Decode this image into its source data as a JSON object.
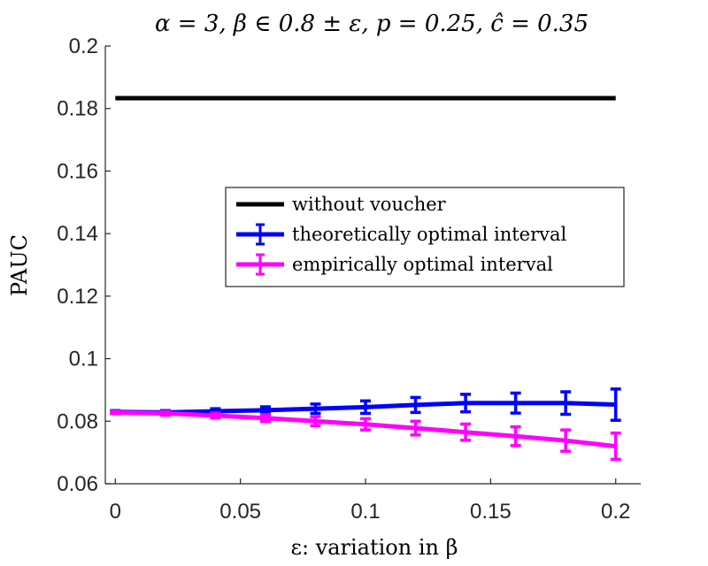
{
  "chart_data": {
    "type": "line",
    "title": "α = 3, β ∈ 0.8 ± ε, p = 0.25, ĉ = 0.35",
    "xlabel": "ε: variation in β",
    "ylabel": "PAUC",
    "xlim": [
      -0.004,
      0.21
    ],
    "ylim": [
      0.06,
      0.2
    ],
    "xticks": [
      0,
      0.05,
      0.1,
      0.15,
      0.2
    ],
    "xtick_labels": [
      "0",
      "0.05",
      "0.1",
      "0.15",
      "0.2"
    ],
    "yticks": [
      0.06,
      0.08,
      0.1,
      0.12,
      0.14,
      0.16,
      0.18,
      0.2
    ],
    "ytick_labels": [
      "0.06",
      "0.08",
      "0.1",
      "0.12",
      "0.14",
      "0.16",
      "0.18",
      "0.2"
    ],
    "legend_position": "center-right",
    "series": [
      {
        "name": "without voucher",
        "color": "#000000",
        "error_bars": false,
        "x": [
          0,
          0.2
        ],
        "y": [
          0.1833,
          0.1833
        ]
      },
      {
        "name": "theoretically optimal interval",
        "color": "#0000ff",
        "error_bars": true,
        "x": [
          0,
          0.02,
          0.04,
          0.06,
          0.08,
          0.1,
          0.12,
          0.14,
          0.16,
          0.18,
          0.2
        ],
        "y": [
          0.083,
          0.0828,
          0.0832,
          0.0835,
          0.084,
          0.0845,
          0.0852,
          0.0858,
          0.0858,
          0.0858,
          0.0853
        ],
        "err": [
          0.0004,
          0.0006,
          0.0008,
          0.0011,
          0.0015,
          0.002,
          0.0024,
          0.0028,
          0.0032,
          0.0036,
          0.005
        ]
      },
      {
        "name": "empirically optimal interval",
        "color": "#ff00ff",
        "error_bars": true,
        "x": [
          0,
          0.02,
          0.04,
          0.06,
          0.08,
          0.1,
          0.12,
          0.14,
          0.16,
          0.18,
          0.2
        ],
        "y": [
          0.0828,
          0.0825,
          0.0818,
          0.081,
          0.08,
          0.079,
          0.0778,
          0.0765,
          0.0752,
          0.0738,
          0.072
        ],
        "err": [
          0.0004,
          0.0006,
          0.0008,
          0.0011,
          0.0014,
          0.0018,
          0.0022,
          0.0026,
          0.003,
          0.0034,
          0.0042
        ]
      }
    ]
  }
}
